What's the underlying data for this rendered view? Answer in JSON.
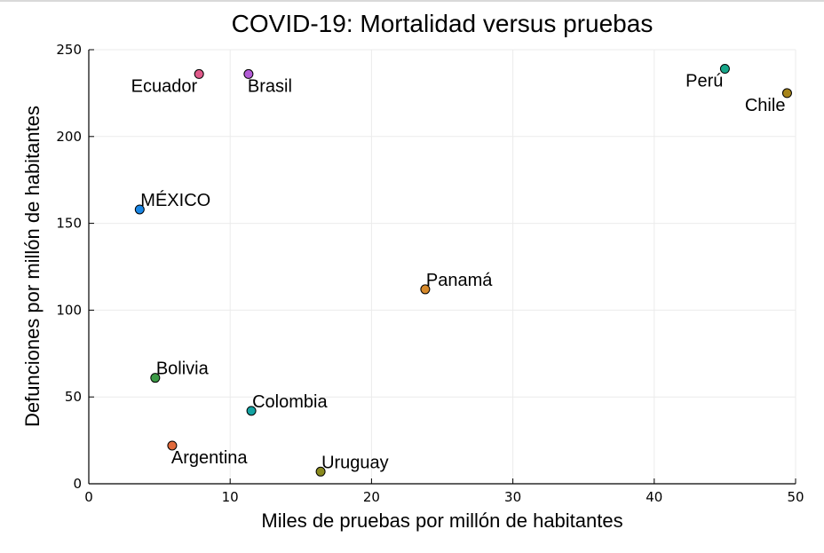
{
  "chart_data": {
    "type": "scatter",
    "title": "COVID-19: Mortalidad versus pruebas",
    "xlabel": "Miles de pruebas por millón de habitantes",
    "ylabel": "Defunciones por millón de habitantes",
    "xlim": [
      0,
      50
    ],
    "ylim": [
      0,
      250
    ],
    "xticks": [
      0,
      10,
      20,
      30,
      40,
      50
    ],
    "yticks": [
      0,
      50,
      100,
      150,
      200,
      250
    ],
    "grid": true,
    "points": [
      {
        "label": "Ecuador",
        "x": 7.8,
        "y": 236,
        "color": "#e05a8a",
        "label_color": "#000000",
        "label_pos": "below-left"
      },
      {
        "label": "Brasil",
        "x": 11.3,
        "y": 236,
        "color": "#b35cd6",
        "label_color": "#000000",
        "label_pos": "below-right"
      },
      {
        "label": "Perú",
        "x": 45.0,
        "y": 239,
        "color": "#17a689",
        "label_color": "#000000",
        "label_pos": "below-left"
      },
      {
        "label": "Chile",
        "x": 49.4,
        "y": 225,
        "color": "#a6841a",
        "label_color": "#000000",
        "label_pos": "below-left"
      },
      {
        "label": "MÉXICO",
        "x": 3.6,
        "y": 158,
        "color": "#1a87e6",
        "label_color": "#e8201c",
        "label_pos": "above-right"
      },
      {
        "label": "Panamá",
        "x": 23.8,
        "y": 112,
        "color": "#d6892a",
        "label_color": "#000000",
        "label_pos": "above-right"
      },
      {
        "label": "Bolivia",
        "x": 4.7,
        "y": 61,
        "color": "#3c9a46",
        "label_color": "#000000",
        "label_pos": "above-right"
      },
      {
        "label": "Colombia",
        "x": 11.5,
        "y": 42,
        "color": "#14a3a3",
        "label_color": "#000000",
        "label_pos": "above-right"
      },
      {
        "label": "Argentina",
        "x": 5.9,
        "y": 22,
        "color": "#e06a3c",
        "label_color": "#000000",
        "label_pos": "below-right"
      },
      {
        "label": "Uruguay",
        "x": 16.4,
        "y": 7,
        "color": "#8a8a1e",
        "label_color": "#000000",
        "label_pos": "above-right"
      }
    ]
  }
}
